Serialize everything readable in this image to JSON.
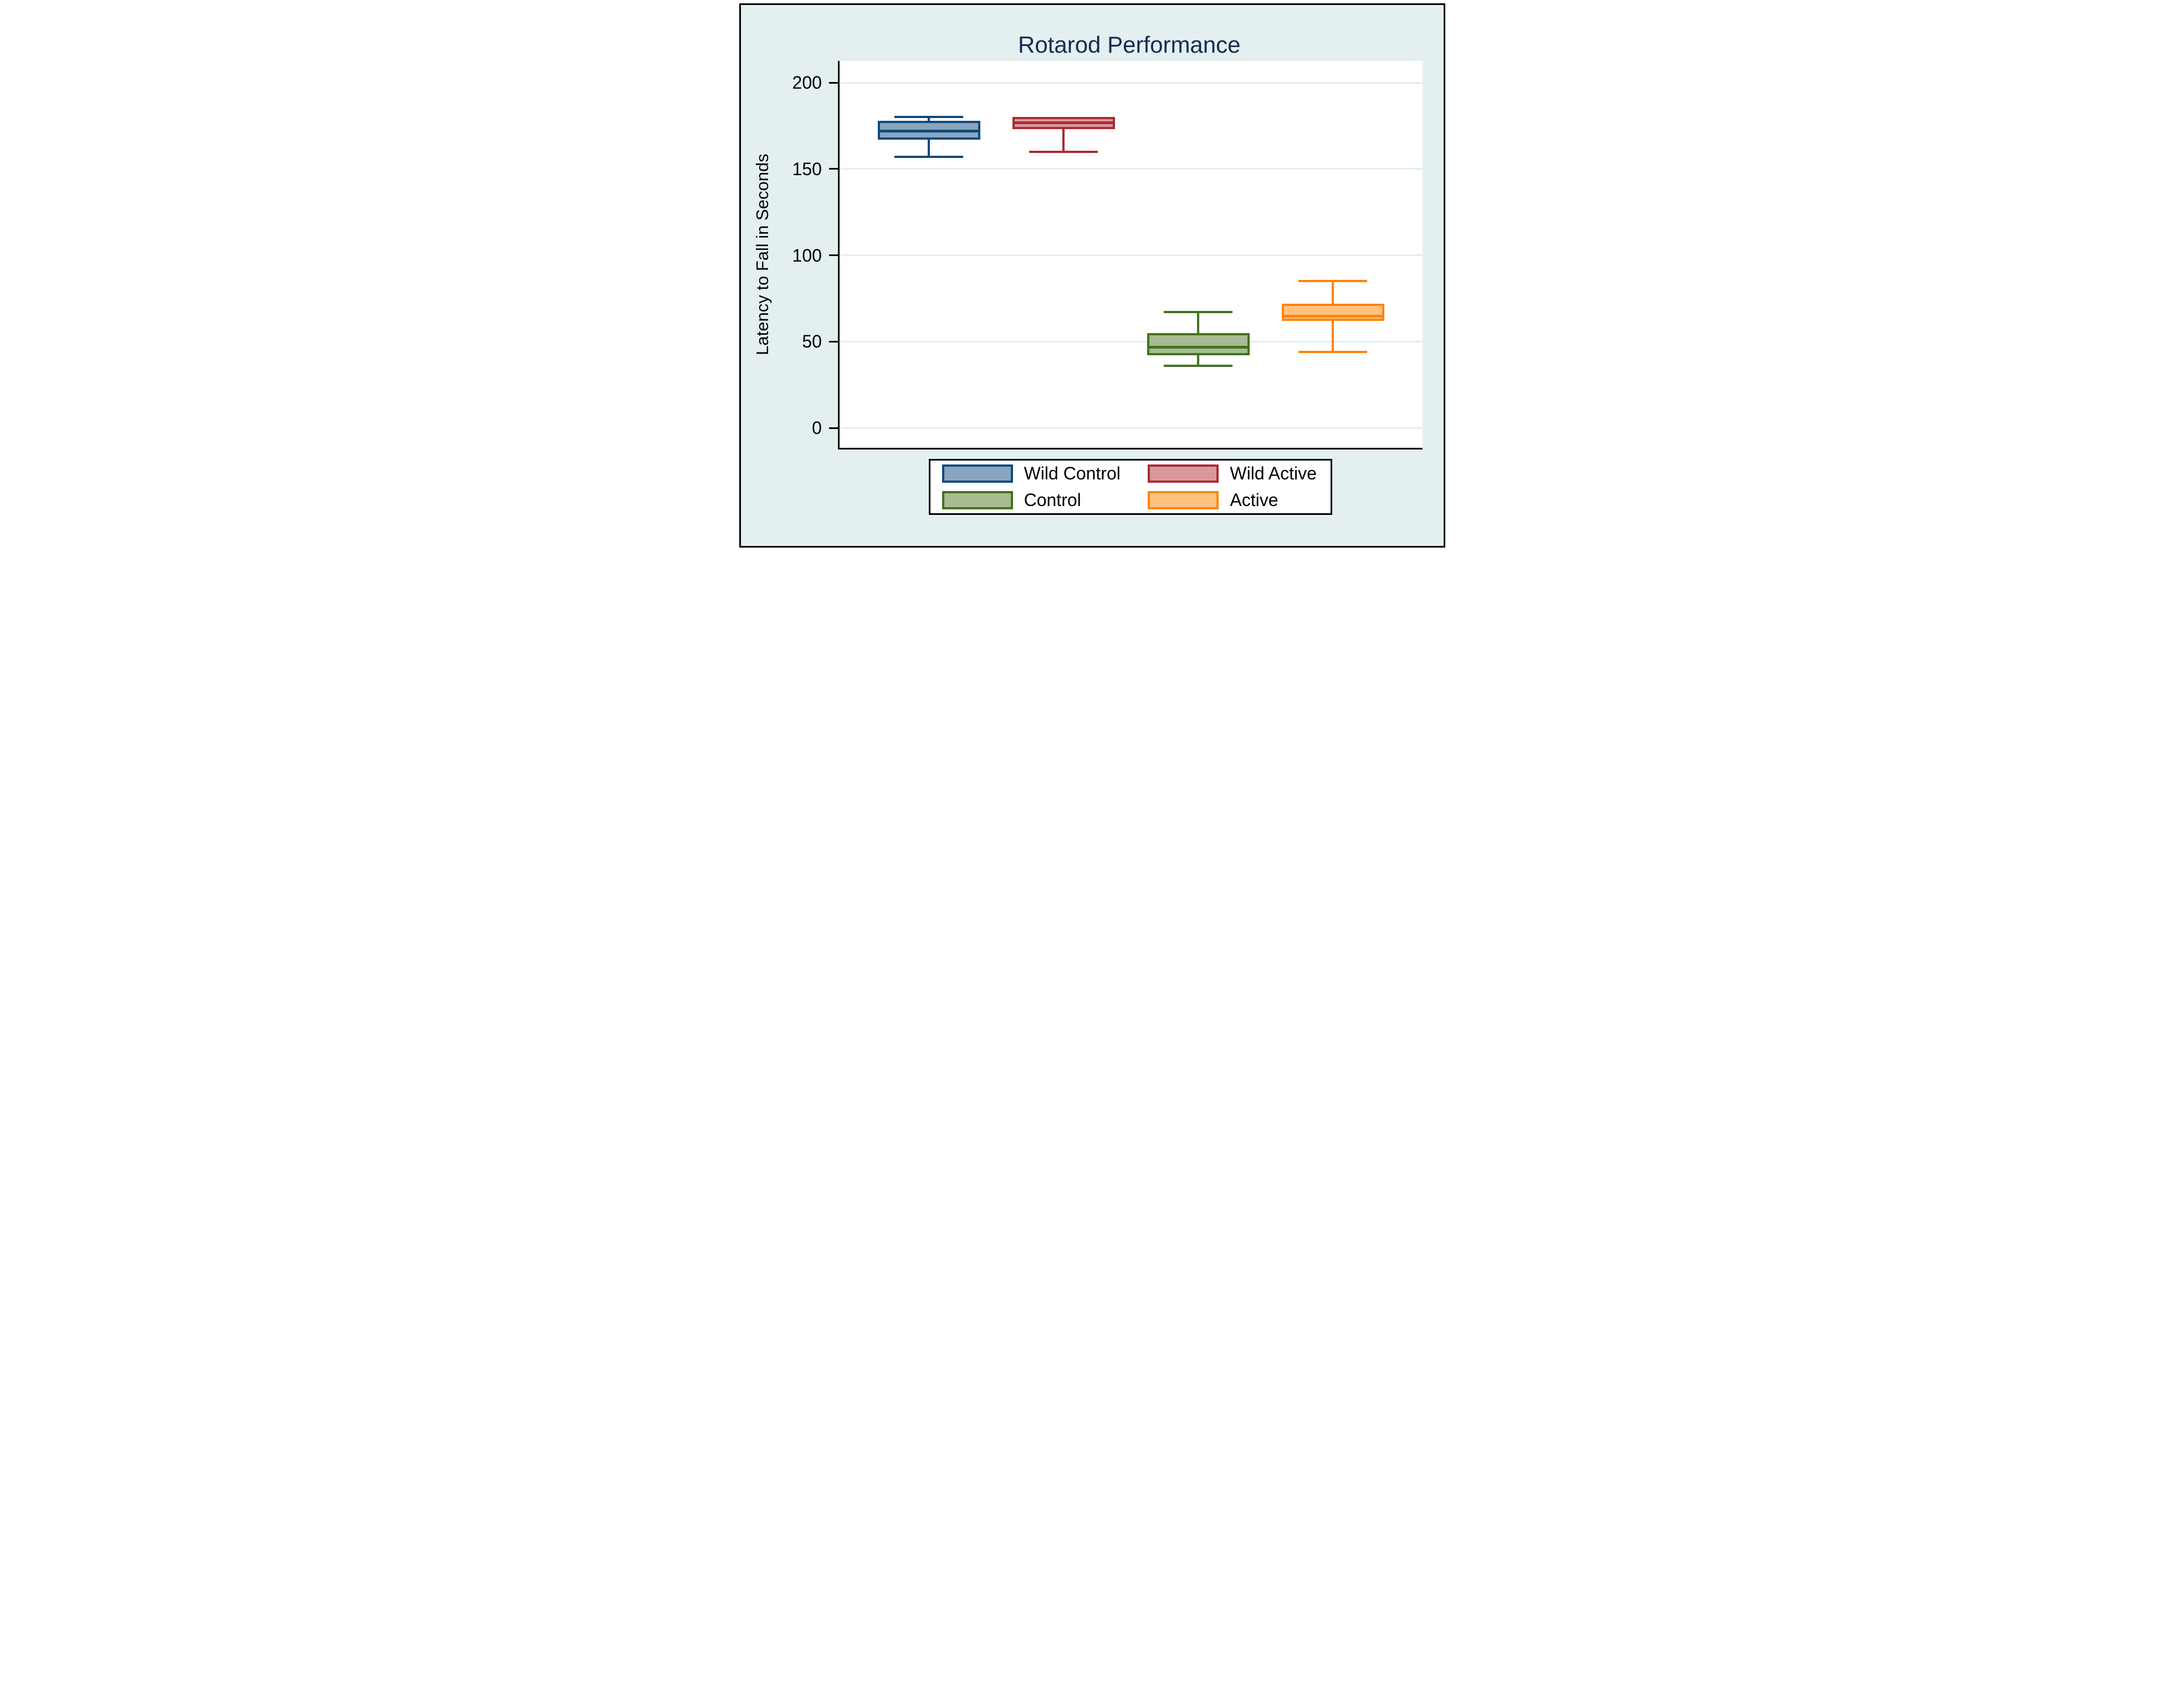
{
  "chart_data": {
    "type": "box",
    "title": "Rotarod Performance",
    "ylabel": "Latency to Fall in Seconds",
    "xlabel": "",
    "yticks": [
      0,
      50,
      100,
      150,
      200
    ],
    "ylim": [
      -11.5,
      212.5
    ],
    "grid": true,
    "legend_position": "bottom",
    "categories": [
      "Wild Control",
      "Wild Active",
      "Control",
      "Active"
    ],
    "series": [
      {
        "name": "Wild Control",
        "min": 157,
        "q1": 167,
        "median": 172,
        "q3": 178,
        "max": 180,
        "fill": "#87a5c0",
        "stroke": "#11497b"
      },
      {
        "name": "Wild Active",
        "min": 160,
        "q1": 173,
        "median": 177,
        "q3": 180,
        "max": 180,
        "fill": "#d9989e",
        "stroke": "#a92b33"
      },
      {
        "name": "Control",
        "min": 36,
        "q1": 42,
        "median": 47,
        "q3": 55,
        "max": 67,
        "fill": "#a8bb93",
        "stroke": "#41731d"
      },
      {
        "name": "Active",
        "min": 44,
        "q1": 62,
        "median": 65,
        "q3": 72,
        "max": 85,
        "fill": "#ffc381",
        "stroke": "#ff8408"
      }
    ]
  },
  "colors": {
    "bg": "#e4eff0",
    "plot_bg": "#ffffff",
    "grid": "#e2eef0",
    "axis": "#000000",
    "title": "#152c52"
  }
}
